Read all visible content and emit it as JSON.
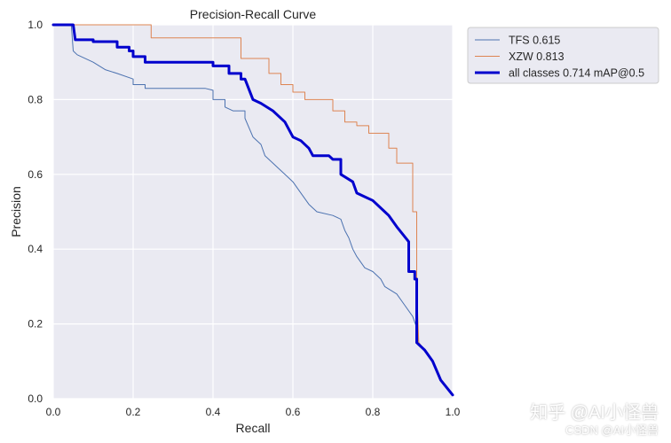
{
  "chart_data": {
    "type": "line",
    "title": "Precision-Recall Curve",
    "xlabel": "Recall",
    "ylabel": "Precision",
    "xlim": [
      0,
      1
    ],
    "ylim": [
      0,
      1
    ],
    "xticks": [
      "0.0",
      "0.2",
      "0.4",
      "0.6",
      "0.8",
      "1.0"
    ],
    "yticks": [
      "0.0",
      "0.2",
      "0.4",
      "0.6",
      "0.8",
      "1.0"
    ],
    "grid": true,
    "legend_position": "outside-top-right",
    "series": [
      {
        "name": "TFS 0.615",
        "color": "#4c72b0",
        "width": 1,
        "points": [
          [
            0,
            1
          ],
          [
            0.045,
            1
          ],
          [
            0.05,
            0.93
          ],
          [
            0.06,
            0.92
          ],
          [
            0.1,
            0.9
          ],
          [
            0.13,
            0.88
          ],
          [
            0.16,
            0.87
          ],
          [
            0.2,
            0.855
          ],
          [
            0.2,
            0.84
          ],
          [
            0.23,
            0.84
          ],
          [
            0.23,
            0.83
          ],
          [
            0.28,
            0.83
          ],
          [
            0.32,
            0.83
          ],
          [
            0.38,
            0.83
          ],
          [
            0.4,
            0.825
          ],
          [
            0.4,
            0.8
          ],
          [
            0.43,
            0.8
          ],
          [
            0.43,
            0.78
          ],
          [
            0.45,
            0.77
          ],
          [
            0.48,
            0.77
          ],
          [
            0.48,
            0.75
          ],
          [
            0.5,
            0.7
          ],
          [
            0.52,
            0.68
          ],
          [
            0.53,
            0.65
          ],
          [
            0.56,
            0.62
          ],
          [
            0.58,
            0.6
          ],
          [
            0.6,
            0.58
          ],
          [
            0.62,
            0.55
          ],
          [
            0.64,
            0.52
          ],
          [
            0.66,
            0.5
          ],
          [
            0.7,
            0.49
          ],
          [
            0.72,
            0.48
          ],
          [
            0.73,
            0.45
          ],
          [
            0.74,
            0.43
          ],
          [
            0.75,
            0.4
          ],
          [
            0.76,
            0.38
          ],
          [
            0.78,
            0.35
          ],
          [
            0.8,
            0.34
          ],
          [
            0.82,
            0.32
          ],
          [
            0.83,
            0.3
          ],
          [
            0.86,
            0.28
          ],
          [
            0.88,
            0.25
          ],
          [
            0.9,
            0.22
          ],
          [
            0.91,
            0.19
          ],
          [
            0.915,
            0.15
          ],
          [
            0.93,
            0.13
          ],
          [
            0.95,
            0.1
          ],
          [
            0.97,
            0.05
          ],
          [
            1,
            0.01
          ]
        ]
      },
      {
        "name": "XZW 0.813",
        "color": "#dd8452",
        "width": 1,
        "points": [
          [
            0,
            1
          ],
          [
            0.045,
            1
          ],
          [
            0.05,
            1
          ],
          [
            0.245,
            1
          ],
          [
            0.245,
            0.965
          ],
          [
            0.44,
            0.965
          ],
          [
            0.47,
            0.965
          ],
          [
            0.47,
            0.91
          ],
          [
            0.54,
            0.91
          ],
          [
            0.54,
            0.87
          ],
          [
            0.57,
            0.87
          ],
          [
            0.57,
            0.84
          ],
          [
            0.6,
            0.84
          ],
          [
            0.6,
            0.82
          ],
          [
            0.63,
            0.82
          ],
          [
            0.63,
            0.8
          ],
          [
            0.7,
            0.8
          ],
          [
            0.7,
            0.77
          ],
          [
            0.73,
            0.77
          ],
          [
            0.73,
            0.74
          ],
          [
            0.76,
            0.74
          ],
          [
            0.76,
            0.73
          ],
          [
            0.79,
            0.73
          ],
          [
            0.79,
            0.71
          ],
          [
            0.84,
            0.71
          ],
          [
            0.84,
            0.67
          ],
          [
            0.86,
            0.67
          ],
          [
            0.86,
            0.63
          ],
          [
            0.9,
            0.63
          ],
          [
            0.9,
            0.5
          ],
          [
            0.91,
            0.5
          ],
          [
            0.91,
            0.3
          ],
          [
            0.915,
            0.15
          ],
          [
            0.93,
            0.13
          ],
          [
            0.95,
            0.1
          ],
          [
            0.97,
            0.05
          ],
          [
            1,
            0.01
          ]
        ]
      },
      {
        "name": "all classes 0.714 mAP@0.5",
        "color": "#0000cd",
        "width": 3,
        "points": [
          [
            0,
            1
          ],
          [
            0.05,
            1
          ],
          [
            0.055,
            0.96
          ],
          [
            0.1,
            0.96
          ],
          [
            0.1,
            0.955
          ],
          [
            0.16,
            0.955
          ],
          [
            0.16,
            0.94
          ],
          [
            0.19,
            0.94
          ],
          [
            0.19,
            0.93
          ],
          [
            0.2,
            0.93
          ],
          [
            0.2,
            0.915
          ],
          [
            0.23,
            0.915
          ],
          [
            0.23,
            0.9
          ],
          [
            0.26,
            0.9
          ],
          [
            0.4,
            0.9
          ],
          [
            0.4,
            0.89
          ],
          [
            0.44,
            0.89
          ],
          [
            0.44,
            0.87
          ],
          [
            0.47,
            0.87
          ],
          [
            0.47,
            0.855
          ],
          [
            0.48,
            0.855
          ],
          [
            0.5,
            0.8
          ],
          [
            0.52,
            0.79
          ],
          [
            0.55,
            0.77
          ],
          [
            0.58,
            0.74
          ],
          [
            0.6,
            0.7
          ],
          [
            0.62,
            0.69
          ],
          [
            0.64,
            0.67
          ],
          [
            0.65,
            0.65
          ],
          [
            0.69,
            0.65
          ],
          [
            0.7,
            0.64
          ],
          [
            0.72,
            0.64
          ],
          [
            0.72,
            0.6
          ],
          [
            0.75,
            0.58
          ],
          [
            0.76,
            0.55
          ],
          [
            0.78,
            0.54
          ],
          [
            0.8,
            0.53
          ],
          [
            0.83,
            0.5
          ],
          [
            0.84,
            0.49
          ],
          [
            0.86,
            0.46
          ],
          [
            0.89,
            0.42
          ],
          [
            0.89,
            0.34
          ],
          [
            0.905,
            0.34
          ],
          [
            0.905,
            0.32
          ],
          [
            0.91,
            0.32
          ],
          [
            0.91,
            0.15
          ],
          [
            0.93,
            0.13
          ],
          [
            0.95,
            0.1
          ],
          [
            0.97,
            0.05
          ],
          [
            1,
            0.01
          ]
        ]
      }
    ]
  },
  "watermark": {
    "line1": "知乎 @AI小怪兽",
    "line2": "CSDN @AI小怪兽"
  }
}
